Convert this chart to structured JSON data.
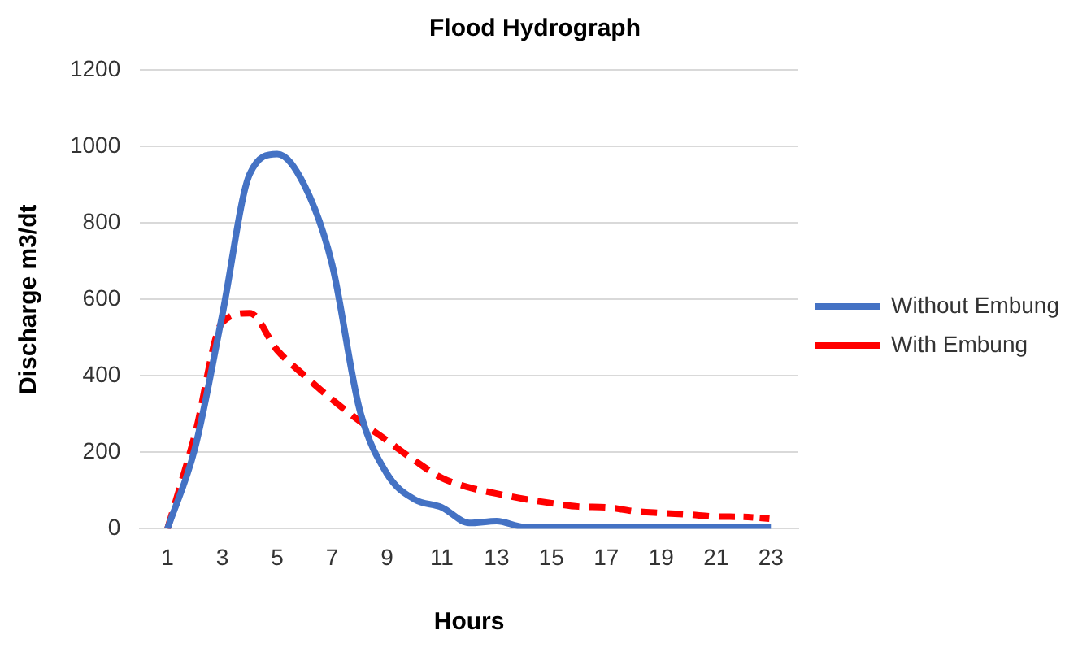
{
  "chart_data": {
    "type": "line",
    "title": "Flood Hydrograph",
    "xlabel": "Hours",
    "ylabel": "Discharge m3/dt",
    "x": [
      1,
      2,
      3,
      4,
      5,
      6,
      7,
      8,
      9,
      10,
      11,
      12,
      13,
      14,
      15,
      16,
      17,
      18,
      19,
      20,
      21,
      22,
      23
    ],
    "series": [
      {
        "name": "Without Embung",
        "color": "#4472c4",
        "line_style": "solid",
        "values": [
          0,
          210,
          560,
          928,
          980,
          897,
          692,
          313,
          144,
          77,
          56,
          15,
          20,
          5,
          5,
          5,
          5,
          5,
          5,
          5,
          5,
          5,
          5
        ]
      },
      {
        "name": "With Embung",
        "color": "#ff0000",
        "line_style": "dashed",
        "values": [
          0,
          246,
          540,
          564,
          467,
          400,
          338,
          282,
          231,
          179,
          133,
          108,
          92,
          78,
          67,
          58,
          56,
          46,
          41,
          37,
          32,
          31,
          26
        ]
      }
    ],
    "xlim": [
      0,
      24
    ],
    "xticks": [
      1,
      3,
      5,
      7,
      9,
      11,
      13,
      15,
      17,
      19,
      21,
      23
    ],
    "ylim": [
      0,
      1200
    ],
    "yticks": [
      0,
      200,
      400,
      600,
      800,
      1000,
      1200
    ],
    "grid": "y",
    "legend": "right",
    "marker": "none"
  }
}
